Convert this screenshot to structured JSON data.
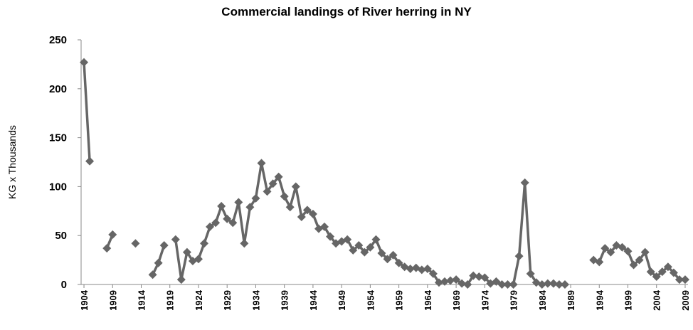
{
  "chart_data": {
    "type": "line",
    "title": "Commercial landings of River herring in NY",
    "y_label": "KG x Thousands",
    "x": [
      1904,
      1905,
      1906,
      1907,
      1908,
      1909,
      1910,
      1911,
      1912,
      1913,
      1914,
      1915,
      1916,
      1917,
      1918,
      1919,
      1920,
      1921,
      1922,
      1923,
      1924,
      1925,
      1926,
      1927,
      1928,
      1929,
      1930,
      1931,
      1932,
      1933,
      1934,
      1935,
      1936,
      1937,
      1938,
      1939,
      1940,
      1941,
      1942,
      1943,
      1944,
      1945,
      1946,
      1947,
      1948,
      1949,
      1950,
      1951,
      1952,
      1953,
      1954,
      1955,
      1956,
      1957,
      1958,
      1959,
      1960,
      1961,
      1962,
      1963,
      1964,
      1965,
      1966,
      1967,
      1968,
      1969,
      1970,
      1971,
      1972,
      1973,
      1974,
      1975,
      1976,
      1977,
      1978,
      1979,
      1980,
      1981,
      1982,
      1983,
      1984,
      1985,
      1986,
      1987,
      1988,
      1989,
      1990,
      1991,
      1992,
      1993,
      1994,
      1995,
      1996,
      1997,
      1998,
      1999,
      2000,
      2001,
      2002,
      2003,
      2004,
      2005,
      2006,
      2007,
      2008,
      2009
    ],
    "series": [
      {
        "name": "River herring",
        "color": "#666666",
        "values": [
          227,
          126,
          null,
          null,
          37,
          51,
          null,
          null,
          null,
          42,
          null,
          null,
          10,
          22,
          40,
          null,
          46,
          5,
          33,
          24,
          26,
          42,
          59,
          63,
          80,
          67,
          63,
          84,
          42,
          79,
          88,
          124,
          95,
          103,
          110,
          90,
          79,
          100,
          69,
          76,
          72,
          57,
          59,
          49,
          42,
          44,
          46,
          35,
          40,
          33,
          38,
          46,
          32,
          26,
          30,
          22,
          18,
          16,
          17,
          15,
          16,
          11,
          2,
          3,
          4,
          5,
          1,
          0,
          9,
          8,
          7,
          1,
          3,
          0,
          0,
          0,
          29,
          104,
          11,
          2,
          0,
          1,
          1,
          0,
          0,
          null,
          null,
          null,
          null,
          25,
          23,
          37,
          33,
          40,
          38,
          34,
          20,
          25,
          33,
          13,
          8,
          13,
          18,
          12,
          5,
          5
        ]
      }
    ],
    "xlim": [
      1903.5,
      2009.5
    ],
    "xticks": [
      1904,
      1909,
      1914,
      1919,
      1924,
      1929,
      1934,
      1939,
      1944,
      1949,
      1954,
      1959,
      1964,
      1969,
      1974,
      1979,
      1984,
      1989,
      1994,
      1999,
      2004,
      2009
    ],
    "ylim": [
      0,
      250
    ],
    "yticks": [
      0,
      50,
      100,
      150,
      200,
      250
    ],
    "grid": false
  }
}
